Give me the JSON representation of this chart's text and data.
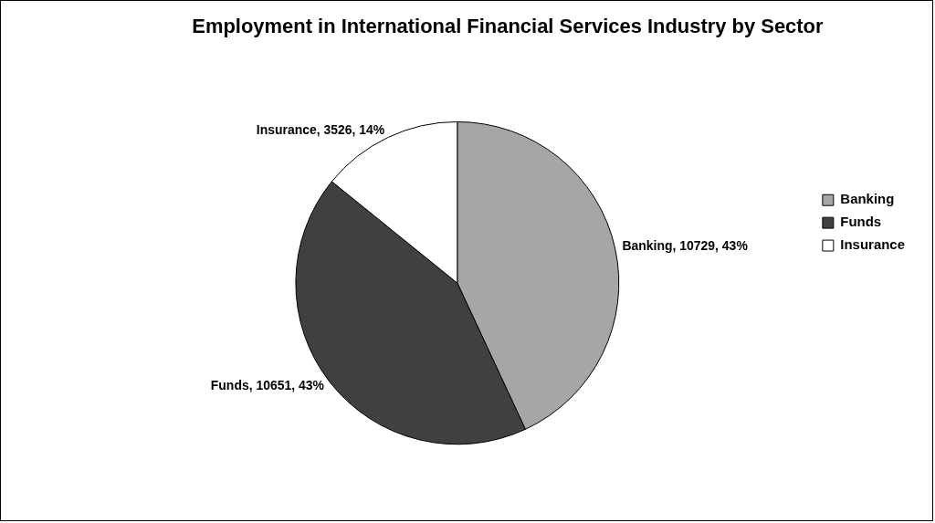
{
  "chart_data": {
    "type": "pie",
    "title": "Employment in International Financial Services Industry by Sector",
    "categories": [
      "Banking",
      "Funds",
      "Insurance"
    ],
    "values": [
      10729,
      10651,
      3526
    ],
    "colors": [
      "#a6a6a6",
      "#404040",
      "#ffffff"
    ],
    "value_labels": [
      "Banking, 10729, 43%",
      "Funds, 10651, 43%",
      "Insurance, 3526, 14%"
    ],
    "legend": "right"
  }
}
